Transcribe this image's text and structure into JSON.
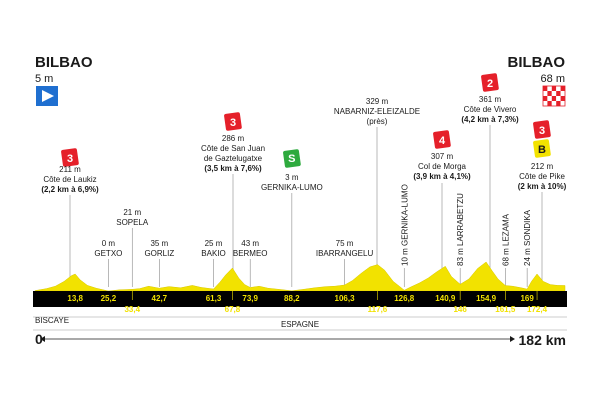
{
  "chart_data": {
    "type": "area",
    "start": {
      "name": "BILBAO",
      "altitude": "5 m"
    },
    "finish": {
      "name": "BILBAO",
      "altitude": "68 m"
    },
    "distance_start": "0",
    "distance_end": "182 km",
    "total_km": 182,
    "region_label": "BISCAYE",
    "country_label": "ESPAGNE",
    "colors": {
      "profile": "#f2e200",
      "band": "#000000",
      "flag_start": "#1f6fd0",
      "climb": "#e5202a",
      "bonus": "#f2e200",
      "sprint": "#2eaa3e"
    },
    "km_markers": [
      "13,8",
      "25,2",
      "33,4",
      "42,7",
      "61,3",
      "67,8",
      "73,9",
      "88,2",
      "106,3",
      "117,6",
      "126,8",
      "140,9",
      "146",
      "154,9",
      "161,5",
      "169",
      "172,4"
    ],
    "km_values": [
      13.8,
      25.2,
      33.4,
      42.7,
      61.3,
      67.8,
      73.9,
      88.2,
      106.3,
      117.6,
      126.8,
      140.9,
      146,
      154.9,
      161.5,
      169,
      172.4
    ],
    "places": [
      {
        "km": 25.2,
        "altitude": "0 m",
        "name": "GETXO"
      },
      {
        "km": 33.4,
        "altitude": "21 m",
        "name": "SOPELA"
      },
      {
        "km": 42.7,
        "altitude": "35 m",
        "name": "GORLIZ"
      },
      {
        "km": 61.3,
        "altitude": "25 m",
        "name": "BAKIO"
      },
      {
        "km": 73.9,
        "altitude": "43 m",
        "name": "BERMEO"
      },
      {
        "km": 106.3,
        "altitude": "75 m",
        "name": "IBARRANGELU"
      }
    ],
    "vertical_places": [
      {
        "km": 126.8,
        "label": "10 m GERNIKA-LUMO"
      },
      {
        "km": 146,
        "label": "83 m LARRABETZU"
      },
      {
        "km": 161.5,
        "label": "68 m LEZAMA"
      },
      {
        "km": 169,
        "label": "24 m SONDIKA"
      }
    ],
    "climbs": [
      {
        "km": 13.8,
        "category": "3",
        "altitude": "211 m",
        "name": "Côte de Laukiz",
        "detail": "(2,2 km à 6,9%)"
      },
      {
        "km": 67.8,
        "category": "3",
        "altitude": "286 m",
        "name": "Côte de San Juan de Gaztelugatxe",
        "name_line1": "Côte de San Juan",
        "name_line2": "de Gaztelugatxe",
        "detail": "(3,5 km à 7,6%)"
      },
      {
        "km": 140.9,
        "category": "4",
        "altitude": "307 m",
        "name": "Col de Morga",
        "detail": "(3,9 km à 4,1%)"
      },
      {
        "km": 154.9,
        "category": "2",
        "altitude": "361 m",
        "name": "Côte de Vivero",
        "detail": "(4,2 km à 7,3%)"
      },
      {
        "km": 172.4,
        "category": "3",
        "altitude": "212 m",
        "name": "Côte de Pike",
        "detail": "(2 km à 10%)",
        "bonus": "B"
      }
    ],
    "sprint": {
      "km": 88.2,
      "symbol": "S",
      "altitude": "3 m",
      "name": "GERNIKA-LUMO"
    },
    "summit": {
      "km": 117.6,
      "altitude": "329 m",
      "name": "NABARNIZ-ELEIZALDE",
      "note": "(près)"
    },
    "profile_points": [
      [
        0,
        5
      ],
      [
        4,
        30
      ],
      [
        7,
        60
      ],
      [
        10,
        120
      ],
      [
        12.5,
        190
      ],
      [
        13.8,
        211
      ],
      [
        15.5,
        140
      ],
      [
        18,
        70
      ],
      [
        21,
        35
      ],
      [
        25.2,
        0
      ],
      [
        29,
        15
      ],
      [
        33.4,
        21
      ],
      [
        36,
        30
      ],
      [
        39,
        60
      ],
      [
        42.7,
        35
      ],
      [
        46,
        55
      ],
      [
        50,
        40
      ],
      [
        54,
        70
      ],
      [
        57,
        45
      ],
      [
        61.3,
        25
      ],
      [
        63.5,
        110
      ],
      [
        65.5,
        200
      ],
      [
        67.8,
        286
      ],
      [
        70,
        160
      ],
      [
        72,
        80
      ],
      [
        73.9,
        43
      ],
      [
        77,
        60
      ],
      [
        80,
        35
      ],
      [
        84,
        20
      ],
      [
        88.2,
        3
      ],
      [
        92,
        20
      ],
      [
        96,
        40
      ],
      [
        100,
        55
      ],
      [
        103,
        60
      ],
      [
        106.3,
        75
      ],
      [
        109,
        130
      ],
      [
        112,
        220
      ],
      [
        115,
        300
      ],
      [
        117.6,
        329
      ],
      [
        120,
        260
      ],
      [
        123,
        120
      ],
      [
        126.8,
        10
      ],
      [
        129,
        50
      ],
      [
        132,
        100
      ],
      [
        135,
        160
      ],
      [
        138,
        240
      ],
      [
        140.9,
        307
      ],
      [
        143,
        180
      ],
      [
        146,
        83
      ],
      [
        149,
        150
      ],
      [
        152,
        280
      ],
      [
        154.9,
        361
      ],
      [
        157,
        250
      ],
      [
        159,
        150
      ],
      [
        161.5,
        68
      ],
      [
        164,
        60
      ],
      [
        167,
        40
      ],
      [
        169,
        24
      ],
      [
        170.5,
        120
      ],
      [
        172.4,
        212
      ],
      [
        174.5,
        120
      ],
      [
        177,
        80
      ],
      [
        179.5,
        70
      ],
      [
        182,
        68
      ]
    ]
  }
}
